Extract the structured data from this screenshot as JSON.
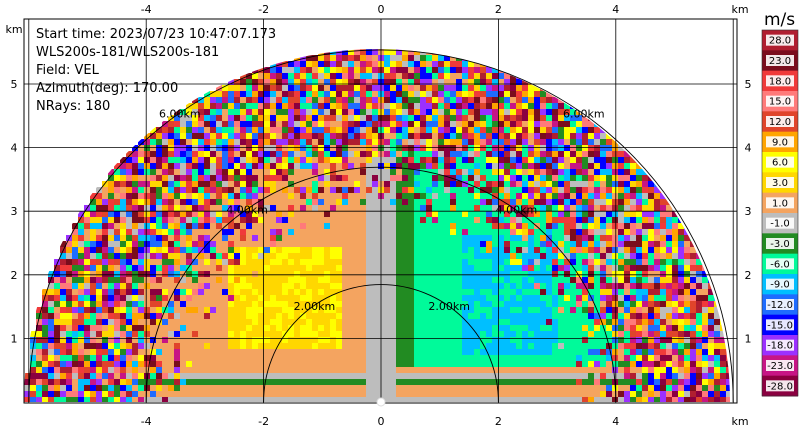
{
  "info": {
    "start_time": "Start time: 2023/07/23 10:47:07.173",
    "instrument": "WLS200s-181/WLS200s-181",
    "field": "Field: VEL",
    "azimuth": "Azimuth(deg): 170.00",
    "nrays": "NRays: 180"
  },
  "axes": {
    "x_unit": "km",
    "y_unit": "km",
    "x_ticks": [
      -4,
      -2,
      0,
      2,
      4
    ],
    "y_ticks": [
      1,
      2,
      3,
      4,
      5
    ],
    "x_range": [
      -6,
      6
    ],
    "y_range": [
      0,
      5.8
    ],
    "grid": true
  },
  "range_rings": [
    {
      "radius_km": 2,
      "label": "2.00km"
    },
    {
      "radius_km": 4,
      "label": "4.00km"
    },
    {
      "radius_km": 6,
      "label": "6.00km"
    }
  ],
  "colorbar": {
    "title": "m/s",
    "labels": [
      "28.0",
      "23.0",
      "18.0",
      "15.0",
      "12.0",
      "9.0",
      "6.0",
      "3.0",
      "1.0",
      "-1.0",
      "-3.0",
      "-6.0",
      "-9.0",
      "-12.0",
      "-15.0",
      "-18.0",
      "-23.0",
      "-28.0"
    ],
    "colors": [
      "#b01e30",
      "#7a0d1d",
      "#f03a3a",
      "#ff7a7a",
      "#e0442b",
      "#ffa500",
      "#ffff00",
      "#ffd700",
      "#f4a460",
      "#bdbdbd",
      "#228b22",
      "#00fa9a",
      "#00bfff",
      "#1e6cff",
      "#0000ff",
      "#9b30ff",
      "#c71585",
      "#8b0040"
    ]
  },
  "chart_data": {
    "type": "heatmap",
    "field": "VEL",
    "units": "m/s",
    "x_unit": "km",
    "y_unit": "km",
    "xlim": [
      -6,
      6
    ],
    "ylim": [
      0,
      5.8
    ],
    "max_range_km": 6,
    "description_of_pattern": []
  }
}
